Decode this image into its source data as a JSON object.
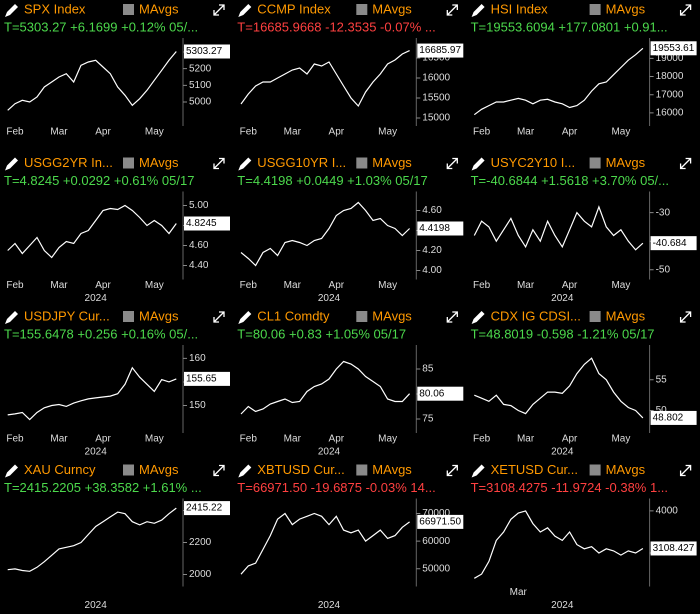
{
  "chart_data": [
    {
      "type": "line",
      "title": "SPX Index",
      "study": "MAvgs",
      "stats": "T=5303.27 +6.1699 +0.12% 05/...",
      "stats_color": "#4cd94c",
      "last_label": "5303.27",
      "categories": [
        null,
        "Feb",
        null,
        null,
        null,
        null,
        null,
        "Mar",
        null,
        null,
        null,
        null,
        null,
        "Apr",
        null,
        null,
        null,
        null,
        null,
        null,
        "May",
        null,
        null,
        null
      ],
      "values": [
        4950,
        4990,
        5010,
        5000,
        5030,
        5090,
        5120,
        5150,
        5170,
        5120,
        5220,
        5240,
        5250,
        5210,
        5170,
        5090,
        5040,
        4980,
        5020,
        5070,
        5130,
        5190,
        5250,
        5303
      ],
      "ylim": [
        4880,
        5360
      ],
      "yticks": [
        5000,
        5100,
        5200,
        5300
      ],
      "color": "#ffffff"
    },
    {
      "type": "line",
      "title": "CCMP Index",
      "study": "MAvgs",
      "stats": "T=16685.9668 -12.3535 -0.07% ...",
      "stats_color": "#ff4040",
      "last_label": "16685.97",
      "categories": [
        null,
        "Feb",
        null,
        null,
        null,
        null,
        null,
        "Mar",
        null,
        null,
        null,
        null,
        null,
        "Apr",
        null,
        null,
        null,
        null,
        null,
        null,
        "May",
        null,
        null,
        null
      ],
      "values": [
        15350,
        15600,
        15800,
        15900,
        15900,
        16000,
        16100,
        16200,
        16250,
        16100,
        16350,
        16300,
        16400,
        16100,
        15800,
        15500,
        15300,
        15650,
        15900,
        16100,
        16350,
        16450,
        16600,
        16686
      ],
      "ylim": [
        14900,
        16900
      ],
      "yticks": [
        15000,
        15500,
        16000,
        16500
      ],
      "color": "#ffffff"
    },
    {
      "type": "line",
      "title": "HSI Index",
      "study": "MAvgs",
      "stats": "T=19553.6094 +177.0801 +0.91...",
      "stats_color": "#4cd94c",
      "last_label": "19553.61",
      "categories": [
        null,
        "Feb",
        null,
        null,
        null,
        null,
        null,
        "Mar",
        null,
        null,
        null,
        null,
        null,
        "Apr",
        null,
        null,
        null,
        null,
        null,
        null,
        "May",
        null,
        null,
        null
      ],
      "values": [
        15900,
        16200,
        16400,
        16600,
        16600,
        16700,
        16800,
        16700,
        16500,
        16700,
        16750,
        16600,
        16500,
        16300,
        16400,
        16700,
        17200,
        17600,
        17700,
        18100,
        18500,
        18900,
        19200,
        19554
      ],
      "ylim": [
        15500,
        19900
      ],
      "yticks": [
        16000,
        17000,
        18000,
        19000
      ],
      "color": "#ffffff"
    },
    {
      "type": "line",
      "title": "USGG2YR In...",
      "study": "MAvgs",
      "stats": "T=4.8245 +0.0292 +0.61% 05/17",
      "stats_color": "#4cd94c",
      "last_label": "4.8245",
      "year": "2024",
      "categories": [
        null,
        "Feb",
        null,
        null,
        null,
        null,
        null,
        "Mar",
        null,
        null,
        null,
        null,
        null,
        "Apr",
        null,
        null,
        null,
        null,
        null,
        null,
        "May",
        null,
        null,
        null
      ],
      "values": [
        4.55,
        4.62,
        4.52,
        4.6,
        4.68,
        4.55,
        4.48,
        4.58,
        4.64,
        4.62,
        4.72,
        4.75,
        4.85,
        4.95,
        4.97,
        4.96,
        5.0,
        4.95,
        4.88,
        4.8,
        4.85,
        4.8,
        4.72,
        4.82
      ],
      "ylim": [
        4.3,
        5.1
      ],
      "yticks": [
        {
          "value": 4.4,
          "label": "4.40"
        },
        {
          "value": 4.6,
          "label": "4.60"
        },
        {
          "value": 4.8,
          "label": "4.80"
        },
        {
          "value": 5,
          "label": "5.00"
        }
      ],
      "color": "#ffffff"
    },
    {
      "type": "line",
      "title": "USGG10YR I...",
      "study": "MAvgs",
      "stats": "T=4.4198 +0.0449 +1.03% 05/17",
      "stats_color": "#4cd94c",
      "last_label": "4.4198",
      "year": "2024",
      "categories": [
        null,
        "Feb",
        null,
        null,
        null,
        null,
        null,
        "Mar",
        null,
        null,
        null,
        null,
        null,
        "Apr",
        null,
        null,
        null,
        null,
        null,
        null,
        "May",
        null,
        null,
        null
      ],
      "values": [
        4.18,
        4.12,
        4.05,
        4.18,
        4.22,
        4.15,
        4.28,
        4.3,
        4.28,
        4.25,
        4.3,
        4.32,
        4.42,
        4.55,
        4.6,
        4.62,
        4.68,
        4.6,
        4.5,
        4.52,
        4.45,
        4.42,
        4.35,
        4.42
      ],
      "ylim": [
        3.95,
        4.75
      ],
      "yticks": [
        {
          "value": 4,
          "label": "4.00"
        },
        {
          "value": 4.2,
          "label": "4.20"
        },
        {
          "value": 4.4,
          "label": "4.40"
        },
        {
          "value": 4.6,
          "label": "4.60"
        }
      ],
      "color": "#ffffff"
    },
    {
      "type": "line",
      "title": "USYC2Y10 I...",
      "study": "MAvgs",
      "stats": "T=-40.6844 +1.5618 +3.70% 05/...",
      "stats_color": "#4cd94c",
      "last_label": "-40.684",
      "year": "2024",
      "categories": [
        null,
        "Feb",
        null,
        null,
        null,
        null,
        null,
        "Mar",
        null,
        null,
        null,
        null,
        null,
        "Apr",
        null,
        null,
        null,
        null,
        null,
        null,
        "May",
        null,
        null,
        null
      ],
      "values": [
        -38,
        -33,
        -35,
        -40,
        -36,
        -32,
        -38,
        -42,
        -36,
        -40,
        -33,
        -38,
        -42,
        -36,
        -30,
        -33,
        -35,
        -28,
        -35,
        -38,
        -36,
        -40,
        -43,
        -40.68
      ],
      "ylim": [
        -52,
        -24
      ],
      "yticks": [
        -50,
        -40,
        -30
      ],
      "color": "#ffffff"
    },
    {
      "type": "line",
      "title": "USDJPY Cur...",
      "study": "MAvgs",
      "stats": "T=155.6478 +0.256 +0.16% 05/...",
      "stats_color": "#4cd94c",
      "last_label": "155.65",
      "year": "2024",
      "categories": [
        null,
        "Feb",
        null,
        null,
        null,
        null,
        null,
        "Mar",
        null,
        null,
        null,
        null,
        null,
        "Apr",
        null,
        null,
        null,
        null,
        null,
        null,
        "May",
        null,
        null,
        null
      ],
      "values": [
        148,
        148.2,
        148.5,
        147,
        148.5,
        149.5,
        150,
        150.2,
        149.8,
        150.5,
        151,
        151.4,
        151.6,
        151.8,
        152,
        152.5,
        154.5,
        158,
        156,
        154.5,
        153,
        155.5,
        155,
        155.65
      ],
      "ylim": [
        145,
        162
      ],
      "yticks": [
        150,
        155,
        160
      ],
      "color": "#ffffff"
    },
    {
      "type": "line",
      "title": "CL1 Comdty",
      "study": "MAvgs",
      "stats": "T=80.06 +0.83 +1.05% 05/17",
      "stats_color": "#4cd94c",
      "last_label": "80.06",
      "year": "2024",
      "categories": [
        null,
        "Feb",
        null,
        null,
        null,
        null,
        null,
        "Mar",
        null,
        null,
        null,
        null,
        null,
        "Apr",
        null,
        null,
        null,
        null,
        null,
        null,
        "May",
        null,
        null,
        null
      ],
      "values": [
        76,
        77.5,
        76.5,
        77,
        78,
        78.5,
        79,
        78.3,
        78.5,
        80.5,
        81.5,
        82,
        83,
        85,
        86.5,
        86,
        85,
        83.5,
        82.5,
        81.5,
        79,
        78.5,
        78.5,
        80.06
      ],
      "ylim": [
        73,
        89
      ],
      "yticks": [
        75,
        80,
        85
      ],
      "color": "#ffffff"
    },
    {
      "type": "line",
      "title": "CDX IG CDSI...",
      "study": "MAvgs",
      "stats": "T=48.8019 -0.598 -1.21% 05/17",
      "stats_color": "#4cd94c",
      "last_label": "48.802",
      "year": "2024",
      "categories": [
        null,
        "Feb",
        null,
        null,
        null,
        null,
        null,
        "Mar",
        null,
        null,
        null,
        null,
        null,
        "Apr",
        null,
        null,
        null,
        null,
        null,
        null,
        "May",
        null,
        null,
        null
      ],
      "values": [
        52.5,
        52,
        51.5,
        52.5,
        51,
        50.8,
        50,
        49.5,
        51,
        52,
        53,
        53,
        52.8,
        54,
        56,
        57.5,
        58.5,
        56,
        55,
        53,
        51.5,
        50.5,
        50,
        48.8
      ],
      "ylim": [
        47,
        60
      ],
      "yticks": [
        50,
        55
      ],
      "color": "#ffffff"
    },
    {
      "type": "line",
      "title": "XAU Curncy",
      "study": "MAvgs",
      "stats": "T=2415.2205 +38.3582 +1.61% ...",
      "stats_color": "#4cd94c",
      "last_label": "2415.22",
      "year": "2024",
      "categories": [
        null,
        null,
        null,
        null,
        null,
        null,
        null,
        null,
        null,
        null,
        null,
        null,
        null,
        null,
        null,
        null,
        null,
        null,
        null,
        null,
        null,
        null,
        null,
        null
      ],
      "values": [
        2030,
        2035,
        2025,
        2020,
        2045,
        2080,
        2120,
        2160,
        2170,
        2180,
        2200,
        2250,
        2300,
        2330,
        2360,
        2390,
        2380,
        2330,
        2310,
        2330,
        2320,
        2340,
        2380,
        2415
      ],
      "ylim": [
        1950,
        2450
      ],
      "yticks": [
        2000,
        2200,
        2400
      ],
      "color": "#ffffff"
    },
    {
      "type": "line",
      "title": "XBTUSD Cur...",
      "study": "MAvgs",
      "stats": "T=66971.50 -19.6875 -0.03% 14...",
      "stats_color": "#ff4040",
      "last_label": "66971.50",
      "year": "2024",
      "categories": [
        null,
        null,
        null,
        null,
        null,
        null,
        null,
        null,
        null,
        null,
        null,
        null,
        null,
        null,
        null,
        null,
        null,
        null,
        null,
        null,
        null,
        null,
        null,
        null
      ],
      "values": [
        48000,
        51000,
        52000,
        57000,
        62000,
        68000,
        70000,
        66000,
        68000,
        69000,
        70000,
        69000,
        66000,
        69000,
        64000,
        63000,
        64000,
        60000,
        62000,
        64000,
        61000,
        62000,
        65000,
        66971.5
      ],
      "ylim": [
        45000,
        74000
      ],
      "yticks": [
        50000,
        60000,
        70000
      ],
      "color": "#ffffff"
    },
    {
      "type": "line",
      "title": "XETUSD Cur...",
      "study": "MAvgs",
      "stats": "T=3108.4275 -11.9724 -0.38% 1...",
      "stats_color": "#ff4040",
      "last_label": "3108.427",
      "year": "2024",
      "categories": [
        null,
        null,
        null,
        null,
        null,
        null,
        "Mar",
        null,
        null,
        null,
        null,
        null,
        null,
        null,
        null,
        null,
        null,
        null,
        null,
        null,
        null,
        null,
        null,
        null
      ],
      "values": [
        2400,
        2500,
        2800,
        3300,
        3500,
        3800,
        3950,
        4000,
        3700,
        3500,
        3600,
        3400,
        3300,
        3500,
        3200,
        3100,
        3150,
        3000,
        3100,
        3050,
        2950,
        3050,
        3000,
        3108
      ],
      "ylim": [
        2300,
        4200
      ],
      "yticks": [
        3000,
        4000
      ],
      "color": "#ffffff"
    }
  ]
}
